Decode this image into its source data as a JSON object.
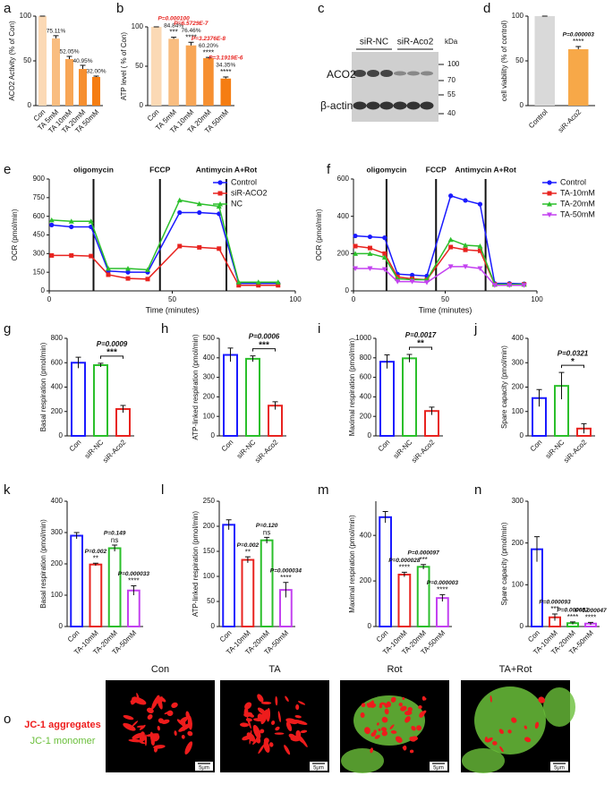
{
  "chart_data": [
    {
      "panel": "a",
      "type": "bar",
      "ylabel": "ACO2 Activity (% of Con)",
      "categories": [
        "Con",
        "TA 5mM",
        "TA 10mM",
        "TA 20mM",
        "TA 50mM"
      ],
      "values": [
        100,
        75.11,
        52.05,
        40.95,
        32.0
      ],
      "errors": [
        0,
        3,
        3,
        4,
        1
      ],
      "value_labels": [
        null,
        "75.11%",
        "52.05%",
        "40.95%",
        "32.00%"
      ],
      "colors": [
        "#fbd9b5",
        "#f9bd80",
        "#f8a656",
        "#f68f30",
        "#f57d12"
      ],
      "ylim": [
        0,
        100
      ],
      "yticks": [
        0,
        50,
        100
      ]
    },
    {
      "panel": "b",
      "type": "bar",
      "ylabel": "ATP level ( % of Con)",
      "categories": [
        "Con",
        "TA 5mM",
        "TA 10mM",
        "TA 20mM",
        "TA 50mM"
      ],
      "values": [
        100,
        84.84,
        76.46,
        60.2,
        34.35
      ],
      "errors": [
        0,
        2,
        4,
        1,
        2
      ],
      "value_labels": [
        null,
        "84.84%",
        "76.46%",
        "60.20%",
        "34.35%"
      ],
      "stars": [
        null,
        "***",
        "****",
        "****",
        "****"
      ],
      "p_labels": [
        null,
        "P=0.000100",
        "P=6.5729E-7",
        "P=3.2376E-8",
        "P=3.1919E-6"
      ],
      "p_color": "#e8231f",
      "colors": [
        "#fbd9b5",
        "#f9bd80",
        "#f8a656",
        "#f68f30",
        "#f57d12"
      ],
      "ylim": [
        0,
        100
      ],
      "yticks": [
        0,
        50,
        100
      ]
    },
    {
      "panel": "d",
      "type": "bar",
      "ylabel": "cell viability (% of control)",
      "categories": [
        "Control",
        "siR-Aco2"
      ],
      "values": [
        100,
        63
      ],
      "errors": [
        0,
        3
      ],
      "stars": [
        null,
        "****"
      ],
      "p_labels": [
        null,
        "P=0.000003"
      ],
      "colors": [
        "#d9d9d9",
        "#f7a848"
      ],
      "ylim": [
        0,
        100
      ],
      "yticks": [
        0,
        50,
        100
      ]
    },
    {
      "panel": "e",
      "type": "line",
      "ylabel": "OCR (pmol/min)",
      "xlabel": "Time (minutes)",
      "x": [
        1,
        9,
        17,
        24,
        32,
        40,
        53,
        61,
        69,
        77,
        85,
        93
      ],
      "events": [
        {
          "x": 18,
          "label": "oligomycin"
        },
        {
          "x": 45,
          "label": "FCCP"
        },
        {
          "x": 72,
          "label": "Antimycin A+Rot"
        }
      ],
      "series": [
        {
          "name": "Control",
          "color": "#1a1aff",
          "marker": "circle",
          "values": [
            530,
            515,
            515,
            160,
            150,
            150,
            630,
            630,
            620,
            60,
            60,
            60
          ]
        },
        {
          "name": "siR-ACO2",
          "color": "#e8231f",
          "marker": "square",
          "values": [
            285,
            285,
            280,
            130,
            100,
            95,
            360,
            350,
            340,
            45,
            45,
            45
          ]
        },
        {
          "name": "NC",
          "color": "#2bbf2b",
          "marker": "triangle",
          "values": [
            570,
            560,
            560,
            180,
            180,
            170,
            730,
            700,
            680,
            70,
            70,
            70
          ]
        }
      ],
      "legend": "top-right",
      "xlim": [
        0,
        100
      ],
      "xticks": [
        0,
        50,
        100
      ],
      "ylim": [
        0,
        900
      ],
      "yticks": [
        0,
        150,
        300,
        450,
        600,
        750,
        900
      ]
    },
    {
      "panel": "f",
      "type": "line",
      "ylabel": "OCR (pmol/min)",
      "xlabel": "Time (minutes)",
      "x": [
        1,
        9,
        17,
        24,
        32,
        40,
        53,
        61,
        69,
        77,
        85,
        93
      ],
      "events": [
        {
          "x": 18,
          "label": "oligomycin"
        },
        {
          "x": 45,
          "label": "FCCP"
        },
        {
          "x": 72,
          "label": "Antimycin A+Rot"
        }
      ],
      "series": [
        {
          "name": "Control",
          "color": "#1a1aff",
          "marker": "circle",
          "values": [
            295,
            290,
            285,
            90,
            85,
            80,
            510,
            485,
            465,
            40,
            40,
            38
          ]
        },
        {
          "name": "TA-10mM",
          "color": "#e8231f",
          "marker": "square",
          "values": [
            240,
            230,
            200,
            75,
            65,
            60,
            235,
            220,
            215,
            35,
            35,
            35
          ]
        },
        {
          "name": "TA-20mM",
          "color": "#2bbf2b",
          "marker": "triangle",
          "values": [
            200,
            200,
            180,
            65,
            60,
            60,
            275,
            245,
            240,
            35,
            35,
            35
          ]
        },
        {
          "name": "TA-50mM",
          "color": "#c341f0",
          "marker": "triangle-down",
          "values": [
            120,
            120,
            115,
            50,
            50,
            45,
            130,
            130,
            120,
            30,
            30,
            30
          ]
        }
      ],
      "legend": "right",
      "xlim": [
        0,
        100
      ],
      "xticks": [
        0,
        50,
        100
      ],
      "ylim": [
        0,
        600
      ],
      "yticks": [
        0,
        200,
        400,
        600
      ]
    },
    {
      "panel": "g",
      "type": "bar",
      "style": "outline",
      "ylabel": "Basal respiration (pmol/min)",
      "categories": [
        "Con",
        "siR-NC",
        "siR-Aco2"
      ],
      "values": [
        600,
        580,
        220
      ],
      "errors": [
        45,
        15,
        30
      ],
      "colors": [
        "#1a1aff",
        "#2bbf2b",
        "#e8231f"
      ],
      "p_label": "P=0.0009",
      "bracket_stars": "***",
      "ylim": [
        0,
        800
      ],
      "yticks": [
        0,
        200,
        400,
        600,
        800
      ]
    },
    {
      "panel": "h",
      "type": "bar",
      "style": "outline",
      "ylabel": "ATP-linked respiration (pmol/min)",
      "categories": [
        "Con",
        "siR-NC",
        "siR-Aco2"
      ],
      "values": [
        415,
        395,
        155
      ],
      "errors": [
        35,
        15,
        20
      ],
      "colors": [
        "#1a1aff",
        "#2bbf2b",
        "#e8231f"
      ],
      "p_label": "P=0.0006",
      "bracket_stars": "***",
      "ylim": [
        0,
        500
      ],
      "yticks": [
        0,
        100,
        200,
        300,
        400,
        500
      ]
    },
    {
      "panel": "i",
      "type": "bar",
      "style": "outline",
      "ylabel": "Maximal respiration (pmol/min)",
      "categories": [
        "Con",
        "siR-NC",
        "siR-Aco2"
      ],
      "values": [
        760,
        795,
        255
      ],
      "errors": [
        70,
        40,
        40
      ],
      "colors": [
        "#1a1aff",
        "#2bbf2b",
        "#e8231f"
      ],
      "p_label": "P=0.0017",
      "bracket_stars": "**",
      "ylim": [
        0,
        1000
      ],
      "yticks": [
        0,
        200,
        400,
        600,
        800,
        1000
      ]
    },
    {
      "panel": "j",
      "type": "bar",
      "style": "outline",
      "ylabel": "Spare capacity (pmol/min)",
      "categories": [
        "Con",
        "siR-NC",
        "siR-Aco2"
      ],
      "values": [
        155,
        205,
        30
      ],
      "errors": [
        35,
        55,
        20
      ],
      "colors": [
        "#1a1aff",
        "#2bbf2b",
        "#e8231f"
      ],
      "p_label": "P=0.0321",
      "bracket_stars": "*",
      "ylim": [
        0,
        400
      ],
      "yticks": [
        0,
        100,
        200,
        300,
        400
      ]
    },
    {
      "panel": "k",
      "type": "bar",
      "style": "outline",
      "ylabel": "Basal respiration (pmol/min)",
      "categories": [
        "Con",
        "TA-10mM",
        "TA-20mM",
        "TA-50mM"
      ],
      "values": [
        290,
        198,
        250,
        115
      ],
      "errors": [
        10,
        4,
        10,
        15
      ],
      "stars": [
        null,
        "**",
        "ns",
        "****"
      ],
      "p_labels": [
        null,
        "P=0.002",
        "P=0.149",
        "P=0.000033"
      ],
      "colors": [
        "#1a1aff",
        "#e8231f",
        "#2bbf2b",
        "#c341f0"
      ],
      "ylim": [
        0,
        400
      ],
      "yticks": [
        0,
        100,
        200,
        300,
        400
      ]
    },
    {
      "panel": "l",
      "type": "bar",
      "style": "outline",
      "ylabel": "ATP-linked respiration (pmol/min)",
      "categories": [
        "Con",
        "TA-10mM",
        "TA-20mM",
        "TA-50mM"
      ],
      "values": [
        203,
        133,
        172,
        73
      ],
      "errors": [
        10,
        6,
        6,
        15
      ],
      "stars": [
        null,
        "**",
        "ns",
        "****"
      ],
      "p_labels": [
        null,
        "P=0.002",
        "P=0.120",
        "P=0.000034"
      ],
      "colors": [
        "#1a1aff",
        "#e8231f",
        "#2bbf2b",
        "#c341f0"
      ],
      "ylim": [
        0,
        250
      ],
      "yticks": [
        0,
        50,
        100,
        150,
        200,
        250
      ]
    },
    {
      "panel": "m",
      "type": "bar",
      "style": "outline",
      "ylabel": "Maximal respiration (pmol/min)",
      "categories": [
        "Con",
        "TA-10mM",
        "TA-20mM",
        "TA-50mM"
      ],
      "values": [
        480,
        228,
        262,
        125
      ],
      "errors": [
        25,
        10,
        10,
        15
      ],
      "stars": [
        null,
        "****",
        "***",
        "****"
      ],
      "p_labels": [
        null,
        "P=0.000028",
        "P=0.000097",
        "P=0.000003"
      ],
      "colors": [
        "#1a1aff",
        "#e8231f",
        "#2bbf2b",
        "#c341f0"
      ],
      "ylim": [
        0,
        550
      ],
      "yticks": [
        0,
        200,
        400
      ]
    },
    {
      "panel": "n",
      "type": "bar",
      "style": "outline",
      "ylabel": "Spare capacity (pmol/min)",
      "categories": [
        "Con",
        "TA-10mM",
        "TA-20mM",
        "TA-50mM"
      ],
      "values": [
        185,
        22,
        8,
        7
      ],
      "errors": [
        30,
        8,
        3,
        3
      ],
      "stars": [
        null,
        "***",
        "****",
        "****"
      ],
      "p_labels": [
        null,
        "P=0.000093",
        "P=0.000052",
        "P=0.000047"
      ],
      "colors": [
        "#1a1aff",
        "#e8231f",
        "#2bbf2b",
        "#c341f0"
      ],
      "ylim": [
        0,
        300
      ],
      "yticks": [
        0,
        100,
        200,
        300
      ]
    }
  ],
  "blot": {
    "panel": "c",
    "lanes": [
      "siR-NC",
      "siR-Aco2"
    ],
    "unit": "kDa",
    "markers": [
      "100",
      "70",
      "55",
      "40"
    ],
    "bands": [
      "ACO2",
      "β-actin"
    ]
  },
  "microscopy": {
    "panel": "o",
    "conditions": [
      "Con",
      "TA",
      "Rot",
      "TA+Rot"
    ],
    "stains": [
      {
        "name": "JC-1 aggregates",
        "color": "#ee1c1c"
      },
      {
        "name": "JC-1 monomer",
        "color": "#6abf3a"
      }
    ],
    "scale_bar": "5μm"
  }
}
